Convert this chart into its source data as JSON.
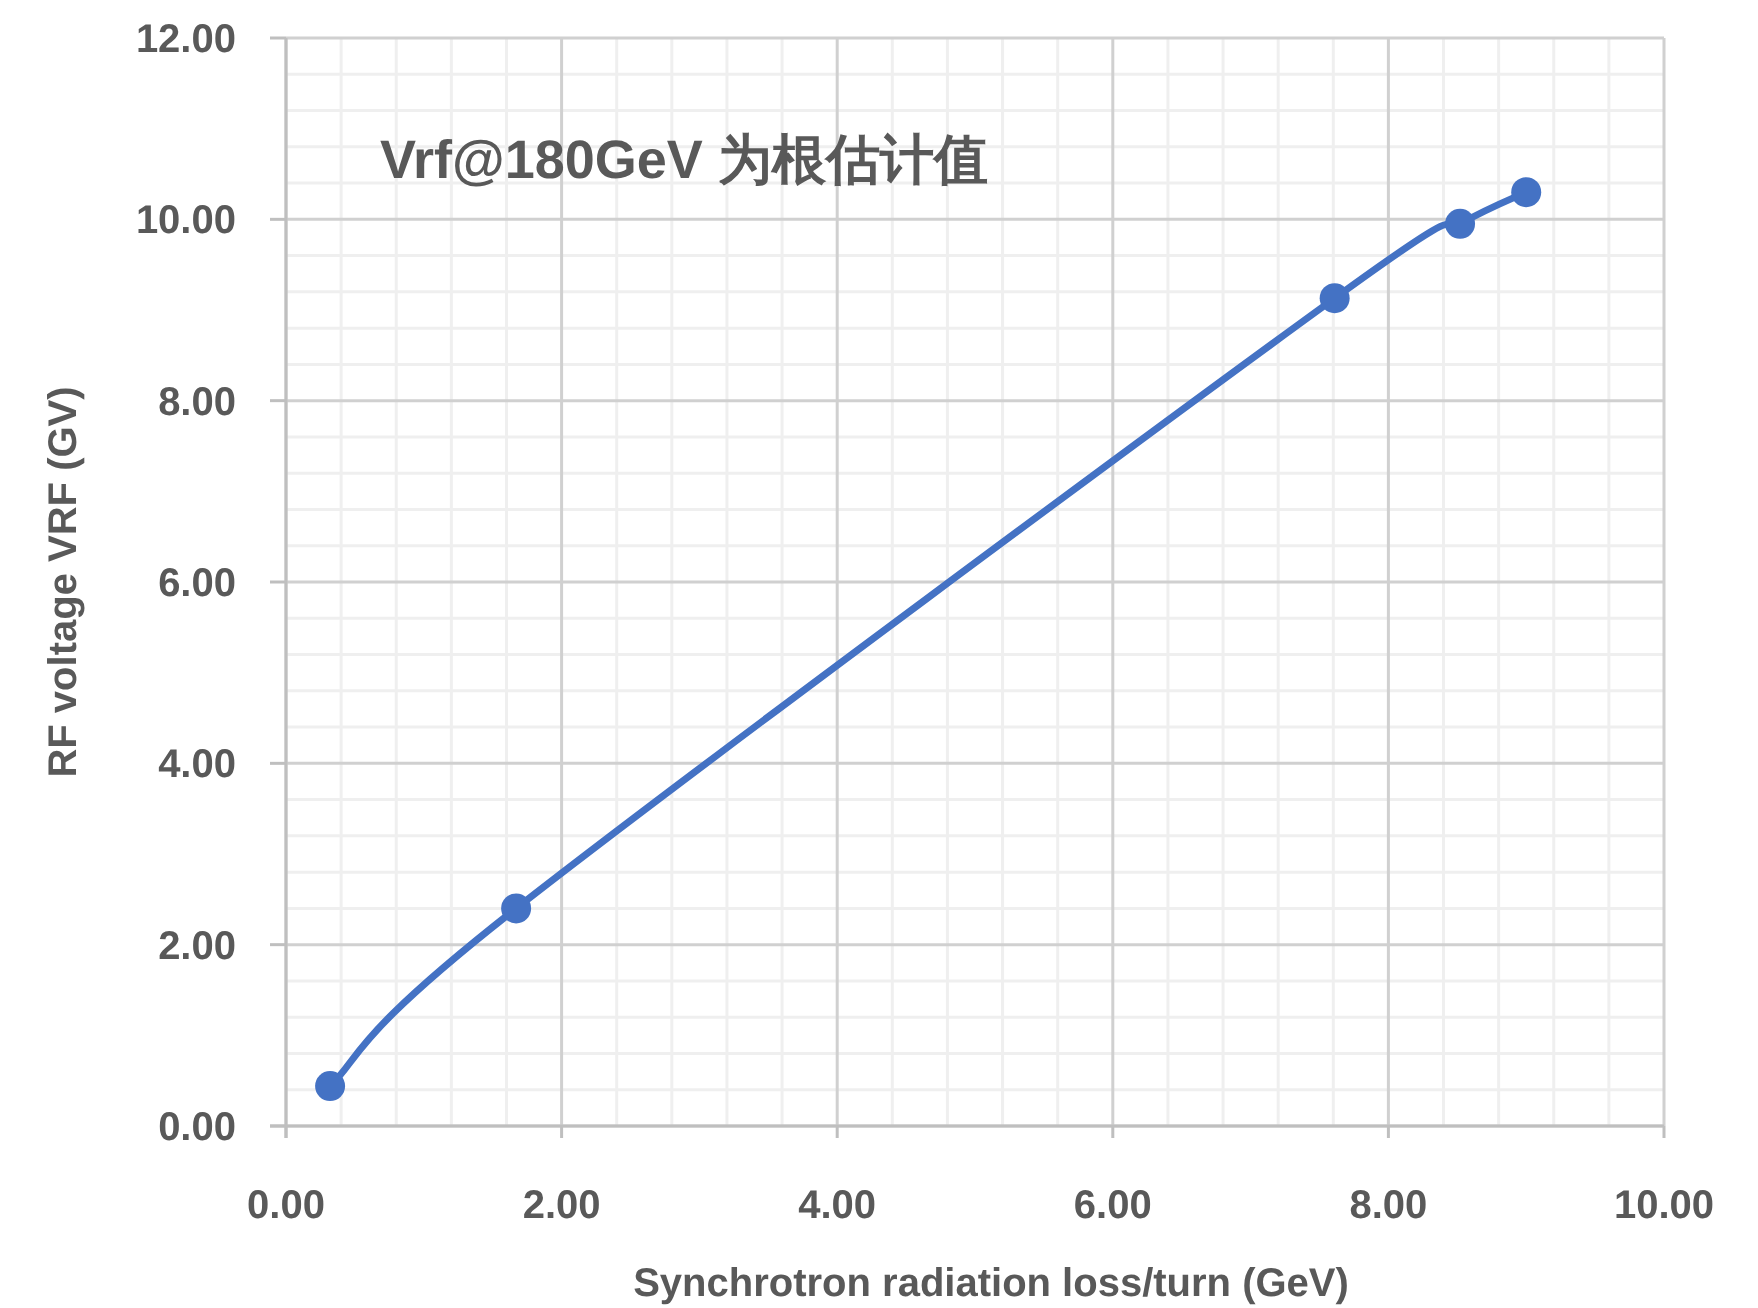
{
  "chart_data": {
    "type": "line",
    "xlabel": "Synchrotron radiation loss/turn (GeV)",
    "ylabel": "RF voltage VRF (GV)",
    "annotations": [
      "Vrf@180GeV 为根估计值"
    ],
    "x": [
      0.32,
      1.67,
      7.61,
      8.52,
      9.0
    ],
    "series": [
      {
        "color": "#4472c4",
        "values": [
          0.44,
          2.4,
          9.13,
          9.95,
          10.3
        ]
      }
    ],
    "xlim": [
      0,
      10
    ],
    "ylim": [
      0,
      12
    ],
    "xticks": [
      {
        "value": 0,
        "label": "0.00"
      },
      {
        "value": 2,
        "label": "2.00"
      },
      {
        "value": 4,
        "label": "4.00"
      },
      {
        "value": 6,
        "label": "6.00"
      },
      {
        "value": 8,
        "label": "8.00"
      },
      {
        "value": 10,
        "label": "10.00"
      }
    ],
    "yticks": [
      {
        "value": 0,
        "label": "0.00"
      },
      {
        "value": 2,
        "label": "2.00"
      },
      {
        "value": 4,
        "label": "4.00"
      },
      {
        "value": 6,
        "label": "6.00"
      },
      {
        "value": 8,
        "label": "8.00"
      },
      {
        "value": 10,
        "label": "10.00"
      },
      {
        "value": 12,
        "label": "12.00"
      }
    ],
    "grid": true,
    "marker": "circle",
    "line_style": "solid"
  }
}
